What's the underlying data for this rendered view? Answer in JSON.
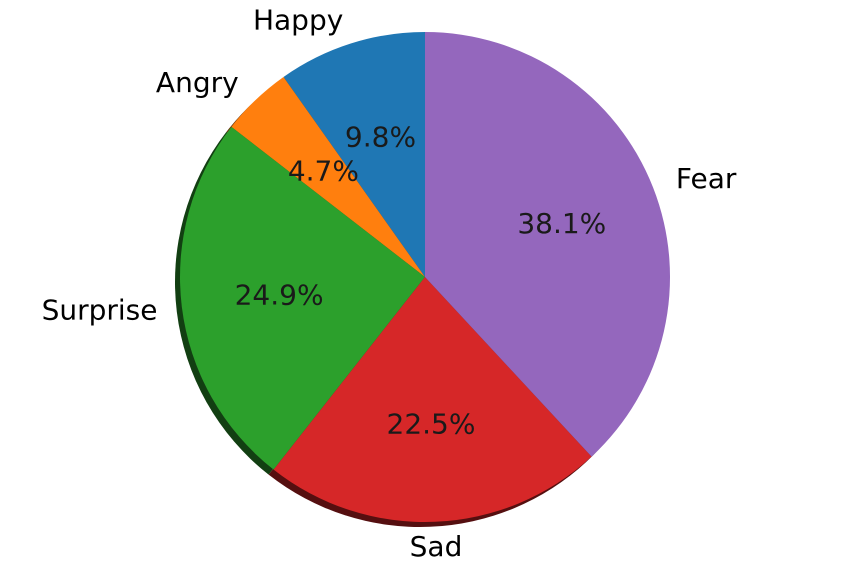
{
  "chart_data": {
    "type": "pie",
    "title": "",
    "shadow": true,
    "start_angle_deg": 90,
    "direction": "counterclockwise",
    "slices": [
      {
        "label": "Happy",
        "value": 9.8,
        "pct_text": "9.8%",
        "color": "#1f77b4"
      },
      {
        "label": "Angry",
        "value": 4.7,
        "pct_text": "4.7%",
        "color": "#ff7f0e"
      },
      {
        "label": "Surprise",
        "value": 24.9,
        "pct_text": "24.9%",
        "color": "#2ca02c"
      },
      {
        "label": "Sad",
        "value": 22.5,
        "pct_text": "22.5%",
        "color": "#d62728"
      },
      {
        "label": "Fear",
        "value": 38.1,
        "pct_text": "38.1%",
        "color": "#9467bd"
      }
    ],
    "shadow_colors": [
      "#0c2f48",
      "#663206",
      "#123f12",
      "#550f10",
      "#3b294b"
    ]
  }
}
